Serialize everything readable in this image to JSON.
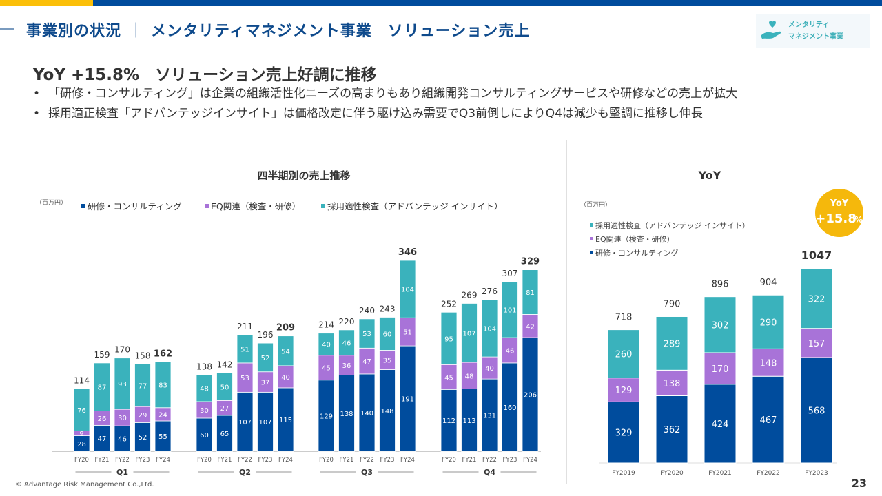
{
  "header": {
    "section": "事業別の状況",
    "separator": "｜",
    "title": "メンタリティマネジメント事業　ソリューション売上",
    "badge_line1": "メンタリティ",
    "badge_line2": "マネジメント事業",
    "badge_icon": "heart-hand-icon"
  },
  "headline": "YoY +15.8%　ソリューション売上好調に推移",
  "bullets": [
    "「研修・コンサルティング」は企業の組織活性化ニーズの高まりもあり組織開発コンサルティングサービスや研修などの売上が拡大",
    "採用適正検査「アドバンテッジインサイト」は価格改定に伴う駆け込み需要でQ3前倒しによりQ4は減少も堅調に推移し伸長"
  ],
  "footer": {
    "copyright": "© Advantage Risk Management Co.,Ltd.",
    "page": "23"
  },
  "colors": {
    "consulting": "#004c9d",
    "eq": "#a873d8",
    "insight": "#3ab2bc",
    "accent_yellow": "#f5b80c",
    "title_blue": "#0e4a8c"
  },
  "chart_data": [
    {
      "type": "bar",
      "stacked": true,
      "title": "四半期別の売上推移",
      "unit_label": "（百万円）",
      "legend": [
        "研修・コンサルティング",
        "EQ関連（検査・研修）",
        "採用適性検査（アドバンテッジ インサイト）"
      ],
      "legend_placement": "top-left",
      "groups": [
        "Q1",
        "Q2",
        "Q3",
        "Q4"
      ],
      "categories": [
        "FY20",
        "FY21",
        "FY22",
        "FY23",
        "FY24"
      ],
      "series": [
        {
          "name": "研修・コンサルティング",
          "values": [
            [
              28,
              47,
              46,
              52,
              55
            ],
            [
              60,
              65,
              107,
              107,
              115
            ],
            [
              129,
              138,
              140,
              148,
              191
            ],
            [
              112,
              113,
              131,
              160,
              206
            ]
          ]
        },
        {
          "name": "EQ関連（検査・研修）",
          "values": [
            [
              9,
              26,
              30,
              29,
              24
            ],
            [
              30,
              27,
              53,
              37,
              40
            ],
            [
              45,
              36,
              47,
              35,
              51
            ],
            [
              45,
              48,
              40,
              46,
              42
            ]
          ]
        },
        {
          "name": "採用適性検査（アドバンテッジ インサイト）",
          "values": [
            [
              76,
              87,
              93,
              77,
              83
            ],
            [
              48,
              50,
              51,
              52,
              54
            ],
            [
              40,
              46,
              53,
              60,
              104
            ],
            [
              95,
              107,
              104,
              101,
              81
            ]
          ]
        }
      ],
      "totals": [
        [
          114,
          159,
          170,
          158,
          162
        ],
        [
          138,
          142,
          211,
          196,
          209
        ],
        [
          214,
          220,
          240,
          243,
          346
        ],
        [
          252,
          269,
          276,
          307,
          329
        ]
      ],
      "highlight_category": "FY24",
      "ylim": [
        0,
        346
      ],
      "grid": false
    },
    {
      "type": "bar",
      "stacked": true,
      "title": "YoY",
      "unit_label": "（百万円）",
      "legend": [
        "採用適性検査（アドバンテッジ インサイト）",
        "EQ関連（検査・研修）",
        "研修・コンサルティング"
      ],
      "legend_placement": "top-left",
      "categories": [
        "FY2019",
        "FY2020",
        "FY2021",
        "FY2022",
        "FY2023"
      ],
      "series": [
        {
          "name": "研修・コンサルティング",
          "values": [
            329,
            362,
            424,
            467,
            568
          ]
        },
        {
          "name": "EQ関連（検査・研修）",
          "values": [
            129,
            138,
            170,
            148,
            157
          ]
        },
        {
          "name": "採用適性検査（アドバンテッジ インサイト）",
          "values": [
            260,
            289,
            302,
            290,
            322
          ]
        }
      ],
      "totals": [
        718,
        790,
        896,
        904,
        1047
      ],
      "highlight_category": "FY2023",
      "ylim": [
        0,
        1047
      ],
      "grid": false,
      "annotation": {
        "line1": "YoY",
        "line2": "+15.8",
        "suffix": "%"
      }
    }
  ]
}
